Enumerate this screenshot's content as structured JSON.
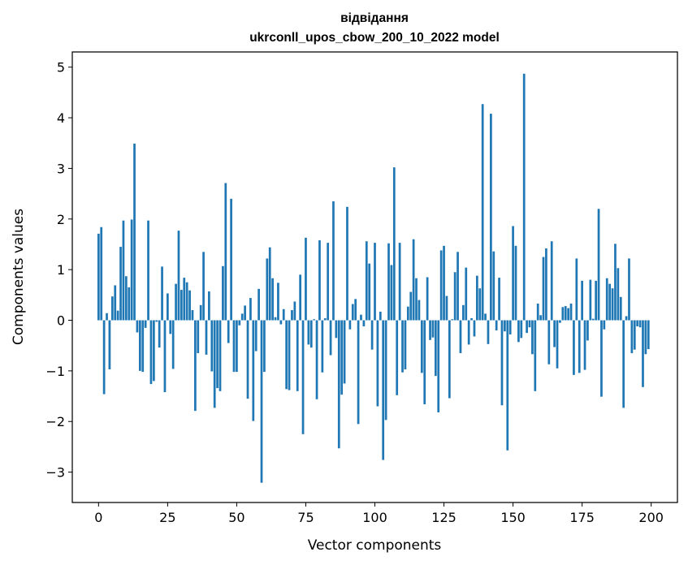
{
  "chart_data": {
    "type": "bar",
    "title": "відвідання",
    "subtitle": "ukrconll_upos_cbow_200_10_2022 model",
    "xlabel": "Vector components",
    "ylabel": "Components values",
    "xlim": [
      -9.5,
      209.5
    ],
    "ylim": [
      -3.6,
      5.3
    ],
    "xticks": [
      0,
      25,
      50,
      75,
      100,
      125,
      150,
      175,
      200
    ],
    "yticks": [
      -3,
      -2,
      -1,
      0,
      1,
      2,
      3,
      4,
      5
    ],
    "xtick_labels": [
      "0",
      "25",
      "50",
      "75",
      "100",
      "125",
      "150",
      "175",
      "200"
    ],
    "ytick_labels": [
      "−3",
      "−2",
      "−1",
      "0",
      "1",
      "2",
      "3",
      "4",
      "5"
    ],
    "bar_color": "#1f77b4",
    "values": [
      1.71,
      1.84,
      -1.46,
      0.14,
      -0.97,
      0.47,
      0.69,
      0.19,
      1.45,
      1.97,
      0.87,
      0.65,
      1.99,
      3.49,
      -0.24,
      -1.0,
      -1.02,
      -0.15,
      1.97,
      -1.26,
      -1.2,
      -0.03,
      -0.54,
      1.06,
      -1.42,
      0.53,
      -0.27,
      -0.96,
      0.72,
      1.77,
      0.6,
      0.84,
      0.75,
      0.59,
      0.2,
      -1.79,
      -0.65,
      0.3,
      1.35,
      -0.68,
      0.57,
      -1.01,
      -1.73,
      -1.34,
      -1.4,
      1.07,
      2.71,
      -0.45,
      2.4,
      -1.02,
      -1.02,
      -0.1,
      0.13,
      0.29,
      -1.55,
      0.44,
      -1.99,
      -0.61,
      0.62,
      -3.21,
      -1.02,
      1.22,
      1.44,
      0.83,
      0.06,
      0.74,
      -0.08,
      0.22,
      -1.36,
      -1.38,
      0.2,
      0.37,
      -1.4,
      0.9,
      -2.25,
      1.63,
      -0.48,
      -0.54,
      0.02,
      -1.56,
      1.58,
      -1.03,
      0.04,
      1.53,
      -0.69,
      2.35,
      -0.35,
      -2.53,
      -1.47,
      -1.25,
      2.24,
      -0.18,
      0.32,
      0.42,
      -2.05,
      0.11,
      -0.12,
      1.56,
      1.12,
      -0.58,
      1.53,
      -1.7,
      0.17,
      -2.76,
      -1.97,
      1.52,
      1.09,
      3.02,
      -1.48,
      1.53,
      -1.03,
      -0.97,
      0.27,
      0.56,
      1.6,
      0.83,
      0.4,
      -1.04,
      -1.66,
      0.85,
      -0.39,
      -0.34,
      -1.1,
      -1.82,
      1.38,
      1.47,
      0.48,
      -1.54,
      0.02,
      0.95,
      1.35,
      -0.65,
      0.3,
      1.04,
      -0.48,
      0.04,
      -0.32,
      0.88,
      0.63,
      4.27,
      0.13,
      -0.47,
      4.08,
      1.36,
      -0.2,
      0.84,
      -1.68,
      -0.22,
      -2.57,
      -0.28,
      1.86,
      1.47,
      -0.43,
      -0.35,
      4.87,
      -0.25,
      -0.14,
      -0.67,
      -1.4,
      0.33,
      0.1,
      1.25,
      1.42,
      -0.87,
      1.56,
      -0.53,
      -0.95,
      -0.05,
      0.26,
      0.28,
      0.24,
      0.33,
      -1.08,
      1.22,
      -1.04,
      0.78,
      -0.98,
      -0.4,
      0.8,
      0.03,
      0.78,
      2.2,
      -1.51,
      -0.18,
      0.83,
      0.72,
      0.63,
      1.51,
      1.03,
      0.46,
      -1.73,
      0.08,
      1.22,
      -0.65,
      -0.58,
      -0.12,
      -0.14,
      -1.32,
      -0.67,
      -0.57
    ]
  }
}
